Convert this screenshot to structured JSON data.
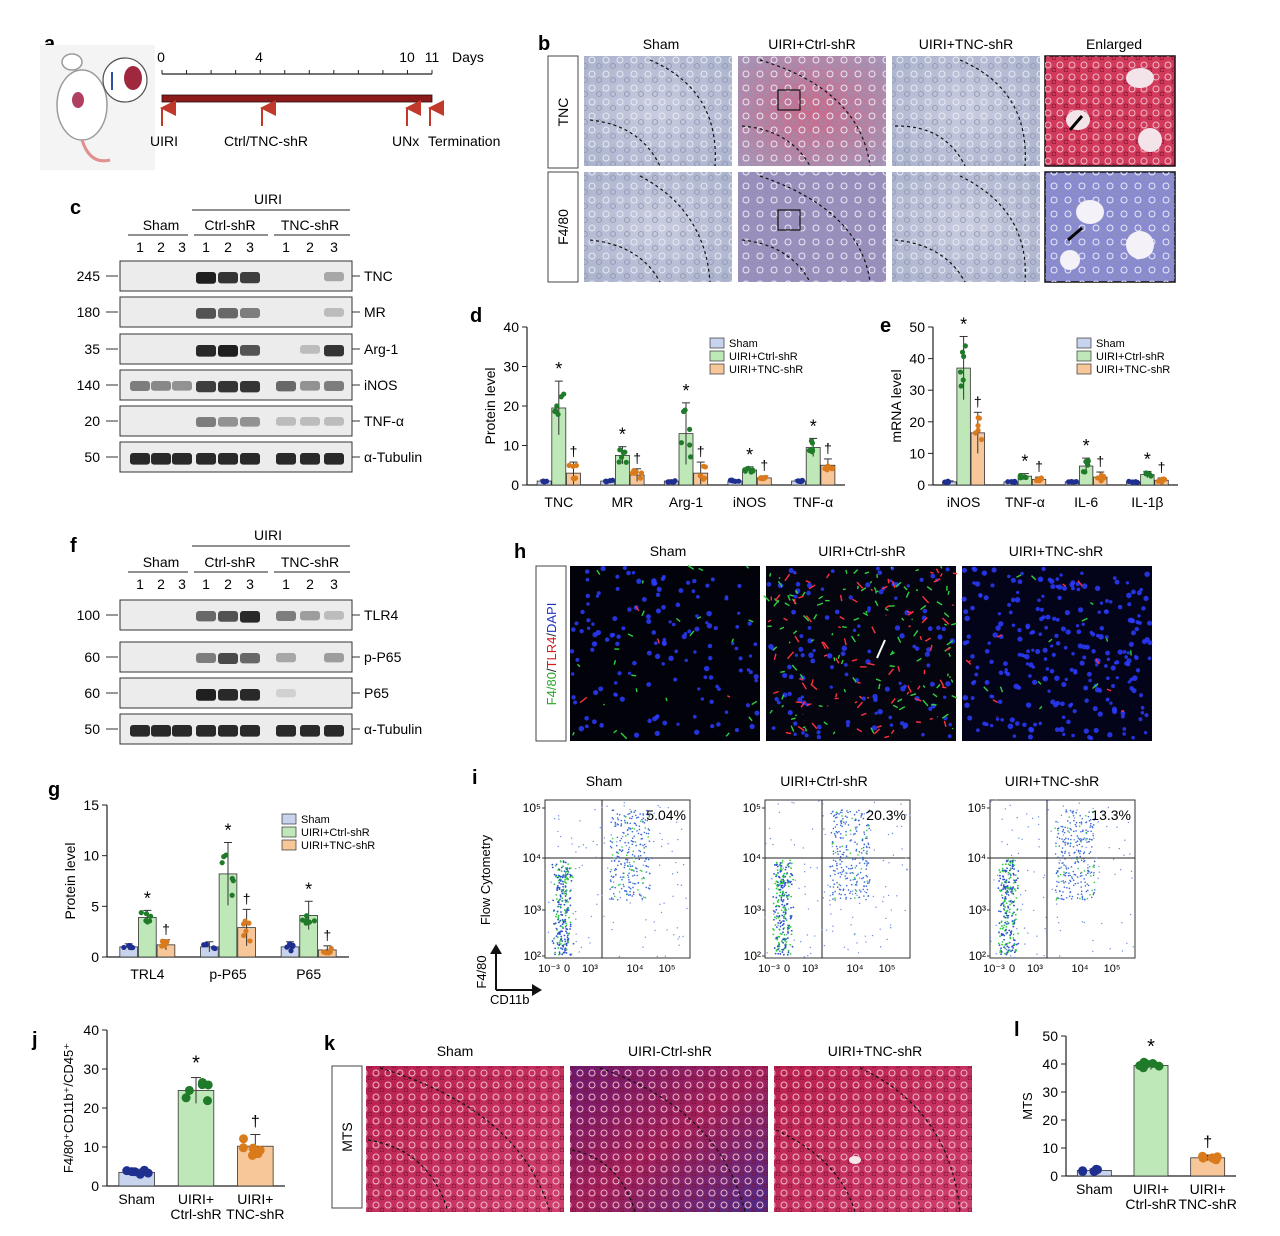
{
  "panels": {
    "a": {
      "letter": "a",
      "days_label": "Days",
      "ticks": [
        "0",
        "4",
        "10",
        "11"
      ],
      "events": [
        "UIRI",
        "Ctrl/TNC-shR",
        "UNx",
        "Termination"
      ]
    },
    "b": {
      "letter": "b",
      "columns": [
        "Sham",
        "UIRI+Ctrl-shR",
        "UIRI+TNC-shR",
        "Enlarged"
      ],
      "rows": [
        "TNC",
        "F4/80"
      ]
    },
    "c": {
      "letter": "c",
      "uiri": "UIRI",
      "groups": [
        "Sham",
        "Ctrl-shR",
        "TNC-shR"
      ],
      "lanes": [
        "1",
        "2",
        "3"
      ],
      "markers": [
        "245",
        "180",
        "35",
        "140",
        "20",
        "50"
      ],
      "targets": [
        "TNC",
        "MR",
        "Arg-1",
        "iNOS",
        "TNF-α",
        "α-Tubulin"
      ]
    },
    "f": {
      "letter": "f",
      "uiri": "UIRI",
      "groups": [
        "Sham",
        "Ctrl-shR",
        "TNC-shR"
      ],
      "lanes": [
        "1",
        "2",
        "3"
      ],
      "markers": [
        "100",
        "60",
        "60",
        "50"
      ],
      "targets": [
        "TLR4",
        "p-P65",
        "P65",
        "α-Tubulin"
      ]
    },
    "h": {
      "letter": "h",
      "columns": [
        "Sham",
        "UIRI+Ctrl-shR",
        "UIRI+TNC-shR"
      ],
      "stain_f480": "F4/80",
      "stain_tlr4": "TLR4",
      "stain_dapi": "DAPI"
    },
    "i": {
      "letter": "i",
      "columns": [
        "Sham",
        "UIRI+Ctrl-shR",
        "UIRI+TNC-shR"
      ],
      "percents": [
        "5.04%",
        "20.3%",
        "13.3%"
      ],
      "ylabel": "Flow Cytometry",
      "axis_y": "F4/80",
      "axis_x": "CD11b",
      "yticks": [
        "10⁵",
        "10⁴",
        "10³",
        "10²"
      ],
      "xticks": [
        "10⁻³",
        "0",
        "10³",
        "10⁴",
        "10⁵"
      ]
    },
    "k": {
      "letter": "k",
      "columns": [
        "Sham",
        "UIRI-Ctrl-shR",
        "UIRI+TNC-shR"
      ],
      "row": "MTS"
    }
  },
  "chart_data": [
    {
      "panel": "d",
      "type": "bar",
      "ylabel": "Protein level",
      "ylim": [
        0,
        40
      ],
      "yticks": [
        0,
        10,
        20,
        30,
        40
      ],
      "categories": [
        "TNC",
        "MR",
        "Arg-1",
        "iNOS",
        "TNF-α"
      ],
      "series": [
        {
          "name": "Sham",
          "values": [
            1,
            1,
            1,
            1,
            1
          ]
        },
        {
          "name": "UIRI+Ctrl-shR",
          "values": [
            19.5,
            7.5,
            13,
            3.8,
            9.5
          ]
        },
        {
          "name": "UIRI+TNC-shR",
          "values": [
            3,
            2.5,
            3,
            1.8,
            5
          ]
        }
      ],
      "errors": [
        [
          0.3,
          0.3,
          0.3,
          0.3,
          0.3
        ],
        [
          6.8,
          2.2,
          7.8,
          0.8,
          2.3
        ],
        [
          2.8,
          1.6,
          2.8,
          0.5,
          1.6
        ]
      ],
      "marks": [
        [
          "",
          "",
          "",
          "",
          ""
        ],
        [
          "*",
          "*",
          "*",
          "*",
          "*"
        ],
        [
          "†",
          "†",
          "†",
          "†",
          "†"
        ]
      ],
      "legend": "top-right"
    },
    {
      "panel": "e",
      "type": "bar",
      "ylabel": "mRNA level",
      "ylim": [
        0,
        50
      ],
      "yticks": [
        0,
        10,
        20,
        30,
        40,
        50
      ],
      "categories": [
        "iNOS",
        "TNF-α",
        "IL-6",
        "IL-1β"
      ],
      "series": [
        {
          "name": "Sham",
          "values": [
            1,
            1,
            1,
            1
          ]
        },
        {
          "name": "UIRI+Ctrl-shR",
          "values": [
            37,
            2.8,
            6,
            3.3
          ]
        },
        {
          "name": "UIRI+TNC-shR",
          "values": [
            16.5,
            1.8,
            2.5,
            1.5
          ]
        }
      ],
      "errors": [
        [
          0.3,
          0.3,
          0.3,
          0.3
        ],
        [
          10,
          0.8,
          2.5,
          1
        ],
        [
          6.5,
          0.7,
          1.6,
          0.7
        ]
      ],
      "marks": [
        [
          "",
          "",
          "",
          ""
        ],
        [
          "*",
          "*",
          "*",
          "*"
        ],
        [
          "†",
          "†",
          "†",
          "†"
        ]
      ],
      "legend": "top-right"
    },
    {
      "panel": "g",
      "type": "bar",
      "ylabel": "Protein level",
      "ylim": [
        0,
        15
      ],
      "yticks": [
        0,
        5,
        10,
        15
      ],
      "categories": [
        "TRL4",
        "p-P65",
        "P65"
      ],
      "series": [
        {
          "name": "Sham",
          "values": [
            1,
            1,
            1
          ]
        },
        {
          "name": "UIRI+Ctrl-shR",
          "values": [
            3.9,
            8.2,
            4.1
          ]
        },
        {
          "name": "UIRI+TNC-shR",
          "values": [
            1.2,
            2.9,
            0.7
          ]
        }
      ],
      "errors": [
        [
          0.3,
          0.5,
          0.5
        ],
        [
          0.7,
          3.1,
          1.4
        ],
        [
          0.5,
          1.8,
          0.4
        ]
      ],
      "marks": [
        [
          "",
          "",
          ""
        ],
        [
          "*",
          "*",
          "*"
        ],
        [
          "†",
          "†",
          "†"
        ]
      ],
      "legend": "top-right"
    },
    {
      "panel": "j",
      "type": "bar",
      "ylabel": "F4/80⁺CD11b⁺/CD45⁺",
      "ylim": [
        0,
        40
      ],
      "yticks": [
        0,
        10,
        20,
        30,
        40
      ],
      "categories": [
        "Sham",
        "UIRI+\nCtrl-shR",
        "UIRI+\nTNC-shR"
      ],
      "values": [
        3.5,
        24.5,
        10.2
      ],
      "errors": [
        0.8,
        3.3,
        3
      ],
      "marks": [
        "",
        "*",
        "†"
      ]
    },
    {
      "panel": "l",
      "type": "bar",
      "ylabel": "MTS",
      "ylim": [
        0,
        50
      ],
      "yticks": [
        0,
        10,
        20,
        30,
        40,
        50
      ],
      "categories": [
        "Sham",
        "UIRI+\nCtrl-shR",
        "UIRI+\nTNC-shR"
      ],
      "values": [
        2,
        39.5,
        6.5
      ],
      "errors": [
        0.5,
        1.5,
        1
      ],
      "marks": [
        "",
        "*",
        "†"
      ]
    }
  ],
  "colors": {
    "sham": "#c8d4ee",
    "sham_dot": "#1f2f8f",
    "ctrl": "#bfe8b8",
    "ctrl_dot": "#1f7a2a",
    "tnc": "#f7c79a",
    "tnc_dot": "#d97b1c",
    "tl_bar": "#8b1a1a",
    "arrow_red": "#c0392b"
  }
}
